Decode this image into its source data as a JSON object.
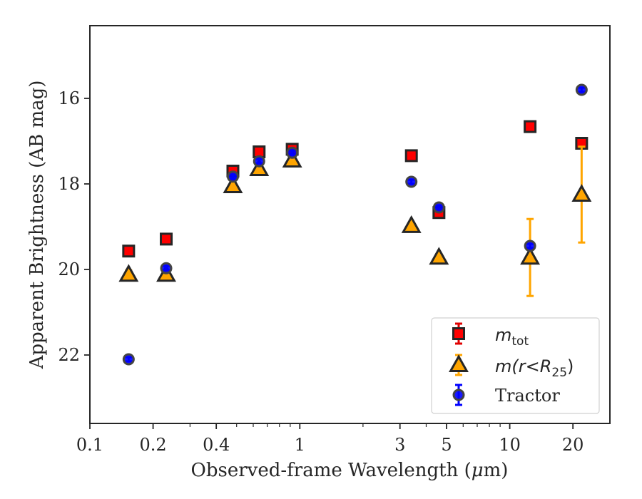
{
  "chart_data": {
    "type": "scatter",
    "xlabel_text": "Observed-frame Wavelength (",
    "xlabel_mu": "μ",
    "xlabel_tail": "m)",
    "ylabel": "Apparent Brightness (AB mag)",
    "x_scale": "log",
    "xlim": [
      0.1,
      30
    ],
    "ylim": [
      23.6,
      14.3
    ],
    "y_inverted": true,
    "x_ticks": [
      {
        "value": 0.1,
        "label": "0.1"
      },
      {
        "value": 0.2,
        "label": "0.2"
      },
      {
        "value": 0.4,
        "label": "0.4"
      },
      {
        "value": 1,
        "label": "1"
      },
      {
        "value": 3,
        "label": "3"
      },
      {
        "value": 5,
        "label": "5"
      },
      {
        "value": 10,
        "label": "10"
      },
      {
        "value": 20,
        "label": "20"
      }
    ],
    "y_ticks": [
      {
        "value": 16,
        "label": "16"
      },
      {
        "value": 18,
        "label": "18"
      },
      {
        "value": 20,
        "label": "20"
      },
      {
        "value": 22,
        "label": "22"
      }
    ],
    "grid": false,
    "legend_position": "lower-right",
    "series": [
      {
        "name": "m_tot",
        "legend_main": "m",
        "legend_sub": "tot",
        "marker": "square",
        "color": "#ff0000",
        "errcolor": "#e00000",
        "points": [
          {
            "x": 0.153,
            "y": 19.57,
            "err": 0
          },
          {
            "x": 0.231,
            "y": 19.29,
            "err": 0
          },
          {
            "x": 0.48,
            "y": 17.7,
            "err": 0
          },
          {
            "x": 0.64,
            "y": 17.25,
            "err": 0
          },
          {
            "x": 0.92,
            "y": 17.19,
            "err": 0
          },
          {
            "x": 3.4,
            "y": 17.34,
            "err": 0
          },
          {
            "x": 4.6,
            "y": 18.67,
            "err": 0.08
          },
          {
            "x": 12.5,
            "y": 16.66,
            "err": 0
          },
          {
            "x": 22.0,
            "y": 17.05,
            "err": 0
          }
        ]
      },
      {
        "name": "m(r<R25)",
        "legend_main": "m(r<R",
        "legend_sub": "25",
        "legend_close": ")",
        "marker": "triangle",
        "color": "#ffa500",
        "errcolor": "#ffa500",
        "points": [
          {
            "x": 0.153,
            "y": 20.12,
            "err": 0.1
          },
          {
            "x": 0.231,
            "y": 20.12,
            "err": 0.05
          },
          {
            "x": 0.48,
            "y": 18.05,
            "err": 0
          },
          {
            "x": 0.64,
            "y": 17.65,
            "err": 0
          },
          {
            "x": 0.92,
            "y": 17.45,
            "err": 0
          },
          {
            "x": 3.4,
            "y": 18.98,
            "err": 0
          },
          {
            "x": 4.6,
            "y": 19.72,
            "err": 0.08
          },
          {
            "x": 12.5,
            "y": 19.72,
            "err": 0.9
          },
          {
            "x": 22.0,
            "y": 18.25,
            "err": 1.12
          }
        ]
      },
      {
        "name": "Tractor",
        "legend_main": "Tractor",
        "marker": "circle",
        "color": "#0000ff",
        "errcolor": "#0000ff",
        "points": [
          {
            "x": 0.153,
            "y": 22.1,
            "err": 0.05
          },
          {
            "x": 0.231,
            "y": 19.97,
            "err": 0.05
          },
          {
            "x": 0.48,
            "y": 17.83,
            "err": 0.05
          },
          {
            "x": 0.64,
            "y": 17.47,
            "err": 0.05
          },
          {
            "x": 0.92,
            "y": 17.27,
            "err": 0.05
          },
          {
            "x": 3.4,
            "y": 17.95,
            "err": 0.05
          },
          {
            "x": 4.6,
            "y": 18.55,
            "err": 0.05
          },
          {
            "x": 12.5,
            "y": 19.45,
            "err": 0.05
          },
          {
            "x": 22.0,
            "y": 15.8,
            "err": 0.05
          }
        ]
      }
    ]
  }
}
